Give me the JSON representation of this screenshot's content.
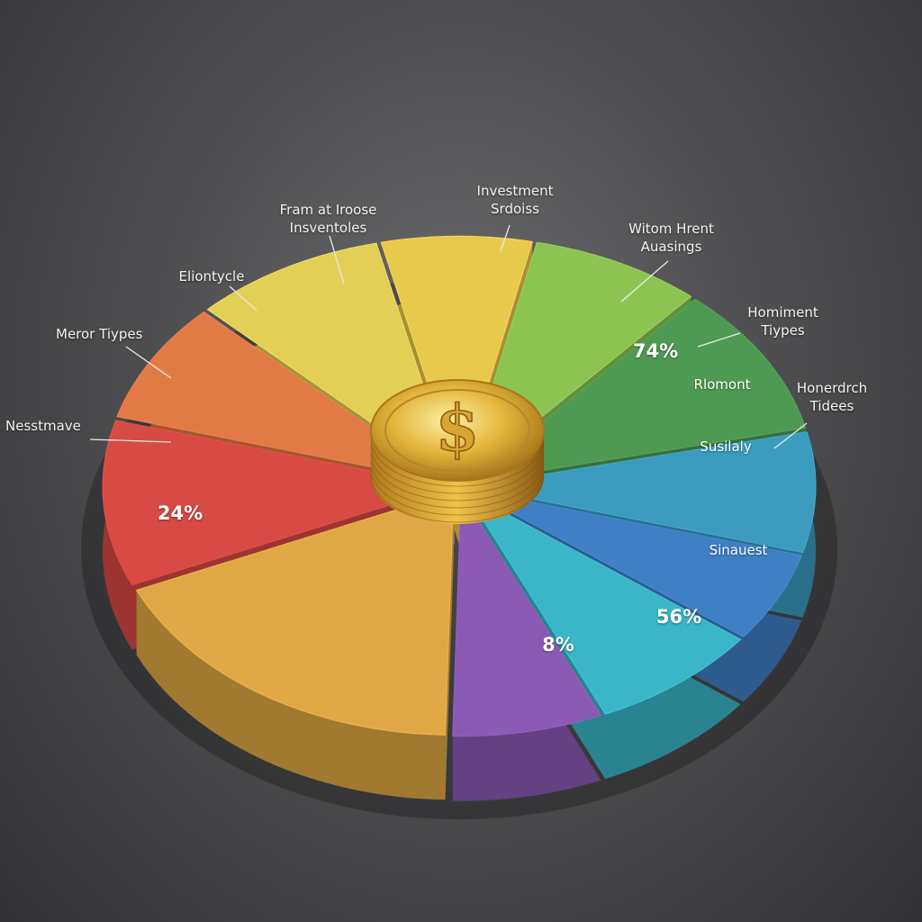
{
  "chart_data": {
    "type": "pie",
    "center_symbol": "$",
    "values": [
      7,
      8,
      10,
      8,
      6,
      8,
      7,
      18,
      11,
      8,
      9
    ],
    "colors": [
      "#e8c94c",
      "#8cc452",
      "#4f9a52",
      "#3c9cbf",
      "#3f7fc4",
      "#3ab6c8",
      "#8a5ab5",
      "#e0a844",
      "#d84a44",
      "#e27a45",
      "#e3cf55"
    ],
    "labels": [
      [
        "Investment Srdoiss"
      ],
      [
        "Witom Hrent Auasings"
      ],
      [
        "Homiment Tiypes"
      ],
      [
        "Honerdrch Tidees"
      ],
      [],
      [],
      [],
      [],
      [
        "Nesstmave"
      ],
      [
        "Meror Tiypes"
      ],
      [
        "Fram at Iroose Insventoles",
        "Eliontycle"
      ]
    ],
    "inner_labels": [
      [],
      [],
      [
        "74%",
        "Rlomont"
      ],
      [
        "Susilaly"
      ],
      [
        "Sinauest"
      ],
      [
        "56%"
      ],
      [
        "8%"
      ],
      [],
      [
        "24%"
      ],
      [],
      []
    ]
  }
}
